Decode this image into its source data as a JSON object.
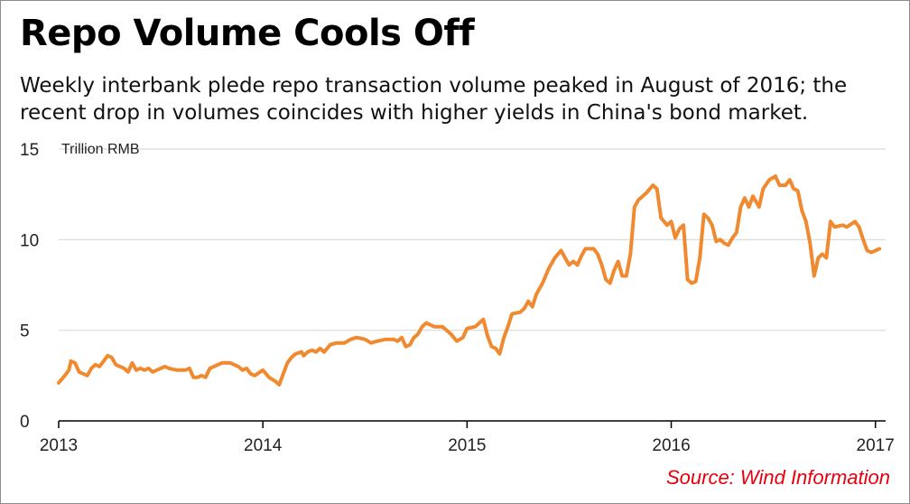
{
  "header": {
    "title": "Repo Volume Cools Off",
    "subtitle": "Weekly interbank plede repo transaction volume peaked in August of 2016; the recent drop in volumes coincides with higher yields in China's bond market."
  },
  "footer": {
    "source": "Source: Wind Information"
  },
  "colors": {
    "line": "#f08a30",
    "grid": "#d9d9d9",
    "axis": "#000000",
    "source": "#e8000d"
  },
  "chart_data": {
    "type": "line",
    "title": "Repo Volume Cools Off",
    "ylabel": "Trillion RMB",
    "xlabel": "",
    "ylim": [
      0,
      15
    ],
    "xlim": [
      2013.0,
      2017.05
    ],
    "yticks": [
      "0",
      "5",
      "10",
      "15"
    ],
    "xticks": [
      "2013",
      "2014",
      "2015",
      "2016",
      "2017"
    ],
    "grid": "horizontal",
    "legend": "none",
    "series": [
      {
        "values": [
          [
            2013.0,
            2.1
          ],
          [
            2013.03,
            2.5
          ],
          [
            2013.05,
            2.8
          ],
          [
            2013.06,
            3.3
          ],
          [
            2013.08,
            3.2
          ],
          [
            2013.1,
            2.7
          ],
          [
            2013.12,
            2.6
          ],
          [
            2013.14,
            2.5
          ],
          [
            2013.16,
            2.9
          ],
          [
            2013.18,
            3.1
          ],
          [
            2013.2,
            3.0
          ],
          [
            2013.22,
            3.3
          ],
          [
            2013.24,
            3.6
          ],
          [
            2013.26,
            3.5
          ],
          [
            2013.28,
            3.1
          ],
          [
            2013.3,
            3.0
          ],
          [
            2013.32,
            2.9
          ],
          [
            2013.34,
            2.7
          ],
          [
            2013.36,
            3.2
          ],
          [
            2013.38,
            2.8
          ],
          [
            2013.4,
            2.9
          ],
          [
            2013.42,
            2.8
          ],
          [
            2013.44,
            2.9
          ],
          [
            2013.46,
            2.7
          ],
          [
            2013.48,
            2.8
          ],
          [
            2013.5,
            2.9
          ],
          [
            2013.52,
            3.0
          ],
          [
            2013.54,
            2.9
          ],
          [
            2013.58,
            2.8
          ],
          [
            2013.62,
            2.8
          ],
          [
            2013.64,
            2.9
          ],
          [
            2013.66,
            2.4
          ],
          [
            2013.68,
            2.4
          ],
          [
            2013.7,
            2.5
          ],
          [
            2013.72,
            2.4
          ],
          [
            2013.74,
            2.9
          ],
          [
            2013.76,
            3.0
          ],
          [
            2013.8,
            3.2
          ],
          [
            2013.84,
            3.2
          ],
          [
            2013.88,
            3.0
          ],
          [
            2013.9,
            2.8
          ],
          [
            2013.92,
            2.9
          ],
          [
            2013.94,
            2.6
          ],
          [
            2013.96,
            2.5
          ],
          [
            2014.0,
            2.8
          ],
          [
            2014.03,
            2.4
          ],
          [
            2014.06,
            2.2
          ],
          [
            2014.08,
            2.0
          ],
          [
            2014.1,
            2.6
          ],
          [
            2014.12,
            3.2
          ],
          [
            2014.14,
            3.5
          ],
          [
            2014.16,
            3.7
          ],
          [
            2014.19,
            3.8
          ],
          [
            2014.2,
            3.6
          ],
          [
            2014.22,
            3.8
          ],
          [
            2014.24,
            3.9
          ],
          [
            2014.26,
            3.8
          ],
          [
            2014.28,
            4.0
          ],
          [
            2014.3,
            3.8
          ],
          [
            2014.33,
            4.2
          ],
          [
            2014.36,
            4.3
          ],
          [
            2014.4,
            4.3
          ],
          [
            2014.43,
            4.5
          ],
          [
            2014.46,
            4.6
          ],
          [
            2014.5,
            4.5
          ],
          [
            2014.53,
            4.3
          ],
          [
            2014.56,
            4.4
          ],
          [
            2014.6,
            4.5
          ],
          [
            2014.64,
            4.5
          ],
          [
            2014.66,
            4.4
          ],
          [
            2014.68,
            4.6
          ],
          [
            2014.7,
            4.1
          ],
          [
            2014.72,
            4.2
          ],
          [
            2014.74,
            4.6
          ],
          [
            2014.76,
            4.8
          ],
          [
            2014.78,
            5.2
          ],
          [
            2014.8,
            5.4
          ],
          [
            2014.84,
            5.2
          ],
          [
            2014.88,
            5.2
          ],
          [
            2014.9,
            5.0
          ],
          [
            2014.92,
            4.8
          ],
          [
            2014.95,
            4.4
          ],
          [
            2014.98,
            4.6
          ],
          [
            2015.0,
            5.1
          ],
          [
            2015.04,
            5.2
          ],
          [
            2015.08,
            5.6
          ],
          [
            2015.1,
            4.7
          ],
          [
            2015.12,
            4.1
          ],
          [
            2015.14,
            4.0
          ],
          [
            2015.16,
            3.7
          ],
          [
            2015.18,
            4.6
          ],
          [
            2015.2,
            5.2
          ],
          [
            2015.22,
            5.9
          ],
          [
            2015.26,
            6.0
          ],
          [
            2015.28,
            6.2
          ],
          [
            2015.3,
            6.6
          ],
          [
            2015.32,
            6.3
          ],
          [
            2015.34,
            7.0
          ],
          [
            2015.37,
            7.6
          ],
          [
            2015.4,
            8.4
          ],
          [
            2015.43,
            9.0
          ],
          [
            2015.46,
            9.4
          ],
          [
            2015.48,
            9.0
          ],
          [
            2015.5,
            8.6
          ],
          [
            2015.52,
            8.8
          ],
          [
            2015.54,
            8.6
          ],
          [
            2015.56,
            9.1
          ],
          [
            2015.58,
            9.5
          ],
          [
            2015.62,
            9.5
          ],
          [
            2015.64,
            9.2
          ],
          [
            2015.66,
            8.6
          ],
          [
            2015.68,
            7.8
          ],
          [
            2015.7,
            7.6
          ],
          [
            2015.72,
            8.3
          ],
          [
            2015.74,
            8.8
          ],
          [
            2015.76,
            8.0
          ],
          [
            2015.78,
            8.0
          ],
          [
            2015.8,
            9.2
          ],
          [
            2015.82,
            11.8
          ],
          [
            2015.84,
            12.2
          ],
          [
            2015.88,
            12.6
          ],
          [
            2015.91,
            13.0
          ],
          [
            2015.93,
            12.8
          ],
          [
            2015.95,
            11.2
          ],
          [
            2015.98,
            10.8
          ],
          [
            2016.0,
            11.0
          ],
          [
            2016.02,
            10.1
          ],
          [
            2016.04,
            10.6
          ],
          [
            2016.06,
            10.8
          ],
          [
            2016.08,
            7.8
          ],
          [
            2016.1,
            7.6
          ],
          [
            2016.12,
            7.7
          ],
          [
            2016.14,
            9.0
          ],
          [
            2016.16,
            11.4
          ],
          [
            2016.18,
            11.2
          ],
          [
            2016.2,
            10.8
          ],
          [
            2016.22,
            9.9
          ],
          [
            2016.24,
            10.0
          ],
          [
            2016.26,
            9.8
          ],
          [
            2016.28,
            9.7
          ],
          [
            2016.3,
            10.1
          ],
          [
            2016.32,
            10.4
          ],
          [
            2016.34,
            11.8
          ],
          [
            2016.36,
            12.3
          ],
          [
            2016.38,
            11.8
          ],
          [
            2016.4,
            12.4
          ],
          [
            2016.43,
            11.8
          ],
          [
            2016.45,
            12.8
          ],
          [
            2016.48,
            13.3
          ],
          [
            2016.51,
            13.5
          ],
          [
            2016.53,
            13.0
          ],
          [
            2016.56,
            13.0
          ],
          [
            2016.58,
            13.3
          ],
          [
            2016.6,
            12.8
          ],
          [
            2016.62,
            12.7
          ],
          [
            2016.64,
            11.6
          ],
          [
            2016.66,
            11.0
          ],
          [
            2016.68,
            9.8
          ],
          [
            2016.7,
            8.0
          ],
          [
            2016.72,
            9.0
          ],
          [
            2016.74,
            9.2
          ],
          [
            2016.76,
            9.0
          ],
          [
            2016.78,
            11.0
          ],
          [
            2016.8,
            10.7
          ],
          [
            2016.84,
            10.8
          ],
          [
            2016.86,
            10.7
          ],
          [
            2016.9,
            11.0
          ],
          [
            2016.92,
            10.7
          ],
          [
            2016.94,
            10.0
          ],
          [
            2016.96,
            9.4
          ],
          [
            2016.98,
            9.3
          ],
          [
            2017.0,
            9.4
          ],
          [
            2017.02,
            9.5
          ]
        ]
      }
    ],
    "source": "Source: Wind Information"
  }
}
